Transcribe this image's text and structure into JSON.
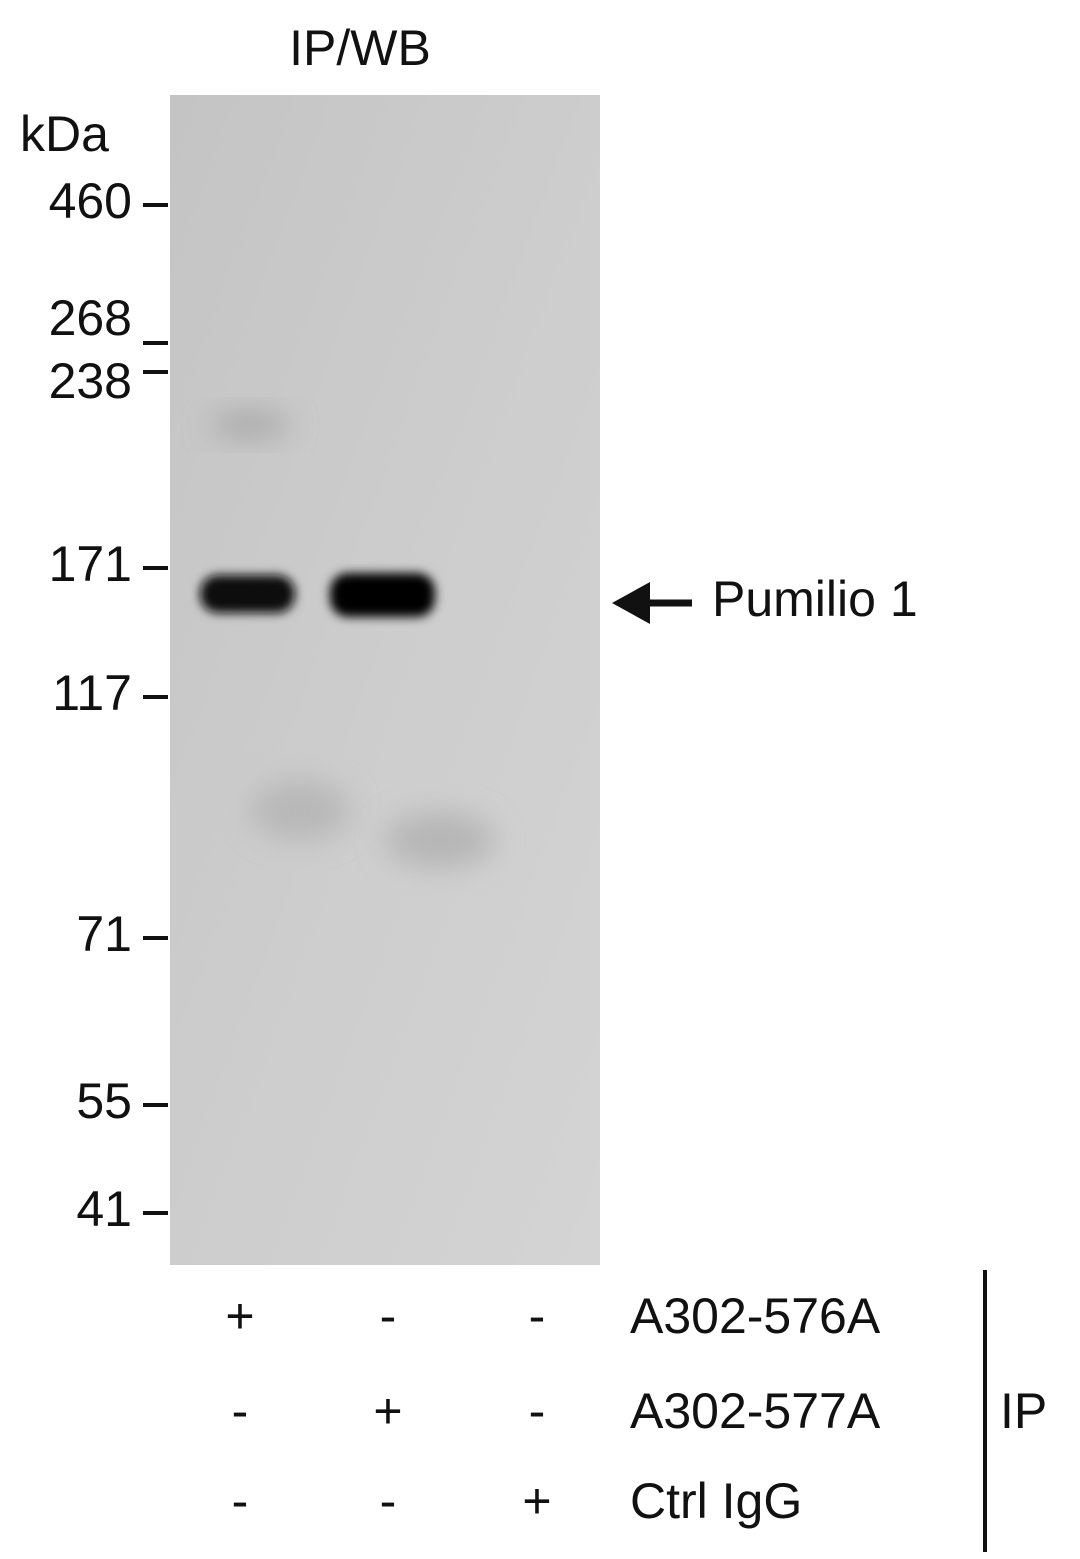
{
  "title": "IP/WB",
  "unit": "kDa",
  "markers": [
    "460",
    "268",
    "238",
    "171",
    "117",
    "71",
    "55",
    "41"
  ],
  "band_label": "Pumilio 1",
  "rows": [
    {
      "label": "A302-576A",
      "signs": [
        "+",
        "-",
        "-"
      ]
    },
    {
      "label": "A302-577A",
      "signs": [
        "-",
        "+",
        "-"
      ]
    },
    {
      "label": "Ctrl IgG",
      "signs": [
        "-",
        "-",
        "+"
      ]
    }
  ],
  "group_label": "IP"
}
